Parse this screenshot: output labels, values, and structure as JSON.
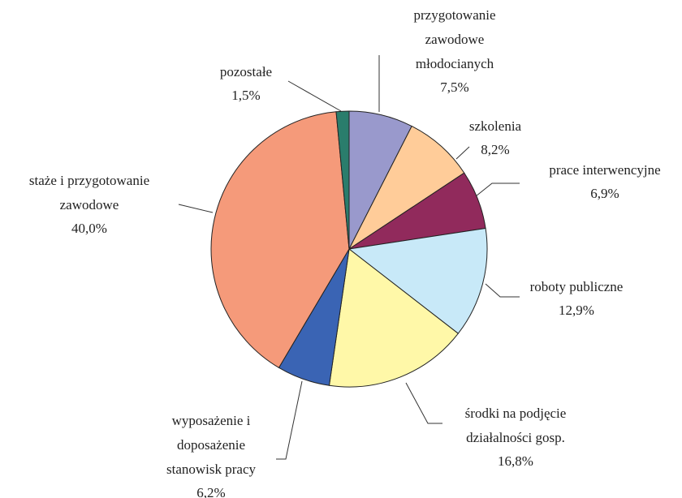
{
  "chart_data": {
    "type": "pie",
    "categories": [
      [
        "przygotowanie",
        "zawodowe",
        "młodocianych"
      ],
      [
        "szkolenia"
      ],
      [
        "prace interwencyjne"
      ],
      [
        "roboty publiczne"
      ],
      [
        "środki na podjęcie",
        "działalności gosp."
      ],
      [
        "wyposażenie i",
        "doposażenie",
        "stanowisk pracy"
      ],
      [
        "staże i przygotowanie",
        "zawodowe"
      ],
      [
        "pozostałe"
      ]
    ],
    "values": [
      7.5,
      8.2,
      6.9,
      12.9,
      16.8,
      6.2,
      40.0,
      1.5
    ],
    "value_labels": [
      "7,5%",
      "8,2%",
      "6,9%",
      "12,9%",
      "16,8%",
      "6,2%",
      "40,0%",
      "1,5%"
    ],
    "colors": [
      "#9999cc",
      "#ffcc99",
      "#912a5c",
      "#c8e9f8",
      "#fff8a8",
      "#3a64b4",
      "#f59a7a",
      "#2a7d6c"
    ]
  }
}
